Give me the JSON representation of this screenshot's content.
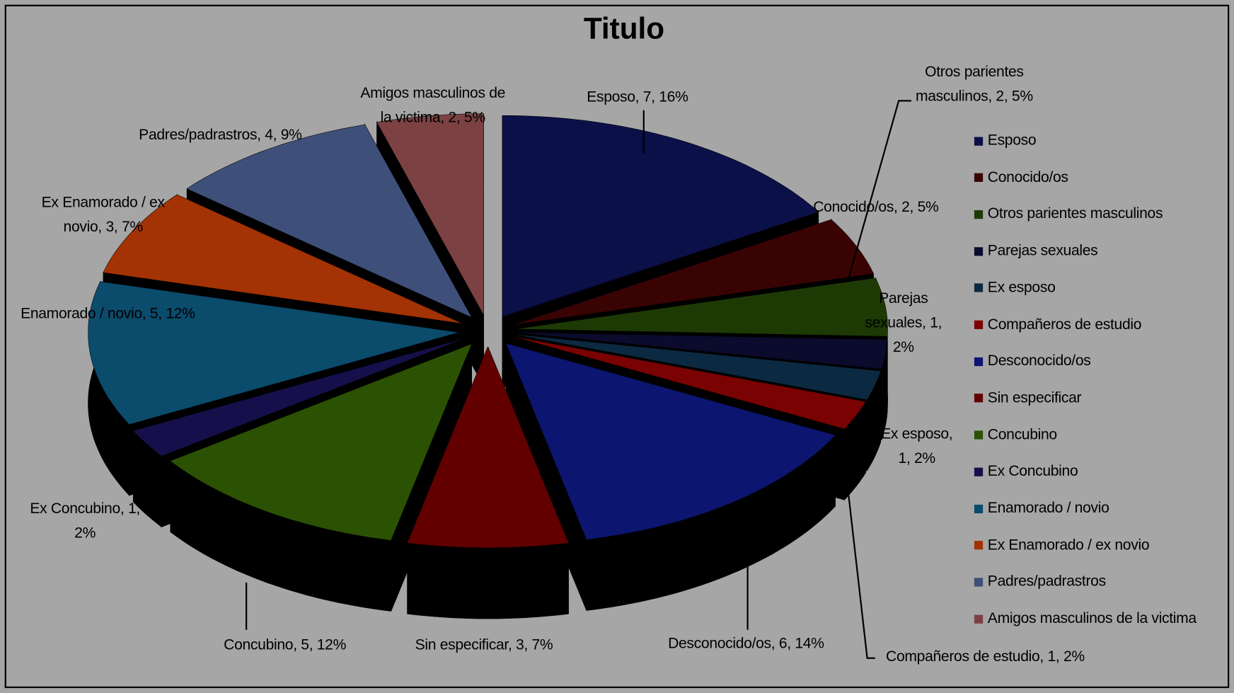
{
  "chart_data": {
    "type": "pie",
    "title": "Titulo",
    "categories": [
      "Esposo",
      "Conocido/os",
      "Otros parientes masculinos",
      "Parejas sexuales",
      "Ex esposo",
      "Compañeros de estudio",
      "Desconocido/os",
      "Sin especificar",
      "Concubino",
      "Ex Concubino",
      "Enamorado / novio",
      "Ex Enamorado / ex novio",
      "Padres/padrastros",
      "Amigos masculinos de la victima"
    ],
    "values": [
      7,
      2,
      2,
      1,
      1,
      1,
      6,
      3,
      5,
      1,
      5,
      3,
      4,
      2
    ],
    "value_labels": [
      "Esposo, 7, 16%",
      "Conocido/os, 2, 5%",
      "Otros parientes masculinos, 2, 5%",
      "Parejas sexuales, 1, 2%",
      "Ex esposo, 1, 2%",
      "Compañeros de estudio, 1, 2%",
      "Desconocido/os, 6, 14%",
      "Sin especificar, 3, 7%",
      "Concubino, 5, 12%",
      "Ex Concubino, 1, 2%",
      "Enamorado / novio, 5, 12%",
      "Ex Enamorado / ex novio, 3, 7%",
      "Padres/padrastros, 4, 9%",
      "Amigos masculinos de la victima, 2, 5%"
    ],
    "colors": [
      "#0b1048",
      "#3a0303",
      "#1d3a04",
      "#0b0b2e",
      "#0b2a42",
      "#7a0202",
      "#0c1570",
      "#620000",
      "#2b5203",
      "#15104c",
      "#0b4b6c",
      "#a33204",
      "#3e5079",
      "#7c4142"
    ],
    "legend": "right"
  }
}
